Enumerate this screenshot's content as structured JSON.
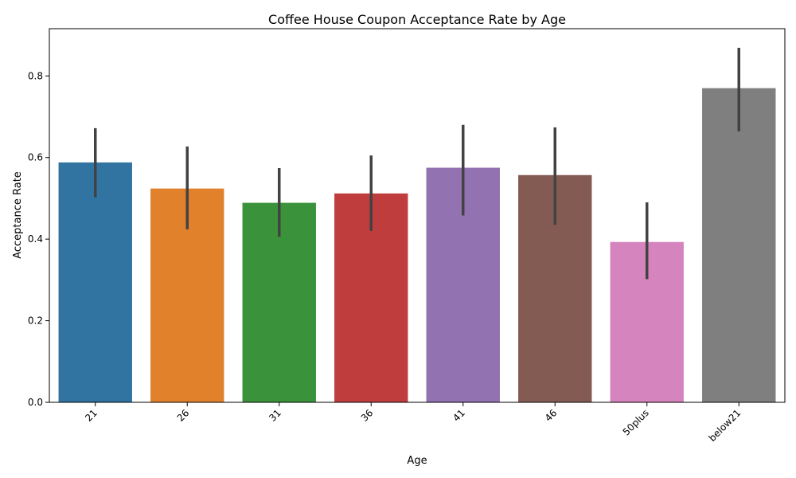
{
  "chart_data": {
    "type": "bar",
    "title": "Coffee House Coupon Acceptance Rate by Age",
    "xlabel": "Age",
    "ylabel": "Acceptance Rate",
    "categories": [
      "21",
      "26",
      "31",
      "36",
      "41",
      "46",
      "50plus",
      "below21"
    ],
    "values": [
      0.588,
      0.524,
      0.489,
      0.512,
      0.575,
      0.557,
      0.393,
      0.77
    ],
    "ci_low": [
      0.502,
      0.424,
      0.406,
      0.42,
      0.458,
      0.435,
      0.302,
      0.664
    ],
    "ci_high": [
      0.672,
      0.627,
      0.574,
      0.605,
      0.68,
      0.674,
      0.49,
      0.869
    ],
    "colors": [
      "#3274a1",
      "#e1812c",
      "#3a923a",
      "#c03d3e",
      "#9372b2",
      "#845b53",
      "#d684bd",
      "#7f7f7f"
    ],
    "error_bar_color": "#424242",
    "ylim": [
      0,
      0.9158
    ],
    "yticks": [
      0.0,
      0.2,
      0.4,
      0.6,
      0.8
    ],
    "ytick_labels": [
      "0.0",
      "0.2",
      "0.4",
      "0.6",
      "0.8"
    ],
    "grid": false,
    "legend": "none"
  }
}
